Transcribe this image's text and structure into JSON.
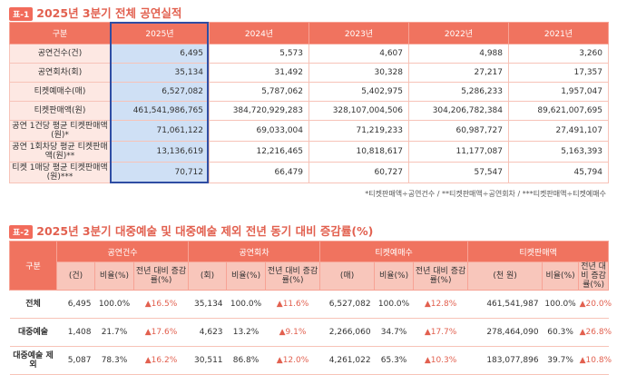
{
  "table1": {
    "tag": "표-1",
    "title": "2025년 3분기 전체 공연실적",
    "headers": [
      "구분",
      "2025년",
      "2024년",
      "2023년",
      "2022년",
      "2021년"
    ],
    "rows": [
      {
        "label": "공연건수(건)",
        "values": [
          "6,495",
          "5,573",
          "4,607",
          "4,988",
          "3,260"
        ]
      },
      {
        "label": "공연회차(회)",
        "values": [
          "35,134",
          "31,492",
          "30,328",
          "27,217",
          "17,357"
        ]
      },
      {
        "label": "티켓예매수(매)",
        "values": [
          "6,527,082",
          "5,787,062",
          "5,402,975",
          "5,286,233",
          "1,957,047"
        ]
      },
      {
        "label": "티켓판매액(원)",
        "values": [
          "461,541,986,765",
          "384,720,929,283",
          "328,107,004,506",
          "304,206,782,384",
          "89,621,007,695"
        ]
      },
      {
        "label": "공연 1건당 평균 티켓판매액(원)*",
        "values": [
          "71,061,122",
          "69,033,004",
          "71,219,233",
          "60,987,727",
          "27,491,107"
        ]
      },
      {
        "label": "공연 1회차당 평균 티켓판매액(원)**",
        "values": [
          "13,136,619",
          "12,216,465",
          "10,818,617",
          "11,177,087",
          "5,163,393"
        ]
      },
      {
        "label": "티켓 1매당 평균 티켓판매액(원)***",
        "values": [
          "70,712",
          "66,479",
          "60,727",
          "57,547",
          "45,794"
        ]
      }
    ],
    "note": "*티켓판매액÷공연건수 / **티켓판매액÷공연회차 / ***티켓판매액÷티켓예매수"
  },
  "table2": {
    "tag": "표-2",
    "title": "2025년 3분기 대중예술 및 대중예술 제외 전년 동기 대비 증감률(%)",
    "corner": "구분",
    "groups": [
      "공연건수",
      "공연회차",
      "티켓예매수",
      "티켓판매액"
    ],
    "subheaders": [
      [
        "(건)",
        "비율(%)",
        "전년 대비 증감률(%)"
      ],
      [
        "(회)",
        "비율(%)",
        "전년 대비 증감률(%)"
      ],
      [
        "(매)",
        "비율(%)",
        "전년 대비 증감률(%)"
      ],
      [
        "(천 원)",
        "비율(%)",
        "전년 대비 증감률(%)"
      ]
    ],
    "rows": [
      {
        "label": "전체",
        "cells": [
          "6,495",
          "100.0%",
          "▲16.5%",
          "35,134",
          "100.0%",
          "▲11.6%",
          "6,527,082",
          "100.0%",
          "▲12.8%",
          "461,541,987",
          "100.0%",
          "▲20.0%"
        ]
      },
      {
        "label": "대중예술",
        "cells": [
          "1,408",
          "21.7%",
          "▲17.6%",
          "4,623",
          "13.2%",
          "▲9.1%",
          "2,266,060",
          "34.7%",
          "▲17.7%",
          "278,464,090",
          "60.3%",
          "▲26.8%"
        ]
      },
      {
        "label": "대중예술 제외",
        "cells": [
          "5,087",
          "78.3%",
          "▲16.2%",
          "30,511",
          "86.8%",
          "▲12.0%",
          "4,261,022",
          "65.3%",
          "▲10.3%",
          "183,077,896",
          "39.7%",
          "▲10.8%"
        ]
      }
    ]
  },
  "colors": {
    "accent": "#f0735f",
    "highlight": "#cfe0f5",
    "selection_border": "#2f4da3"
  }
}
